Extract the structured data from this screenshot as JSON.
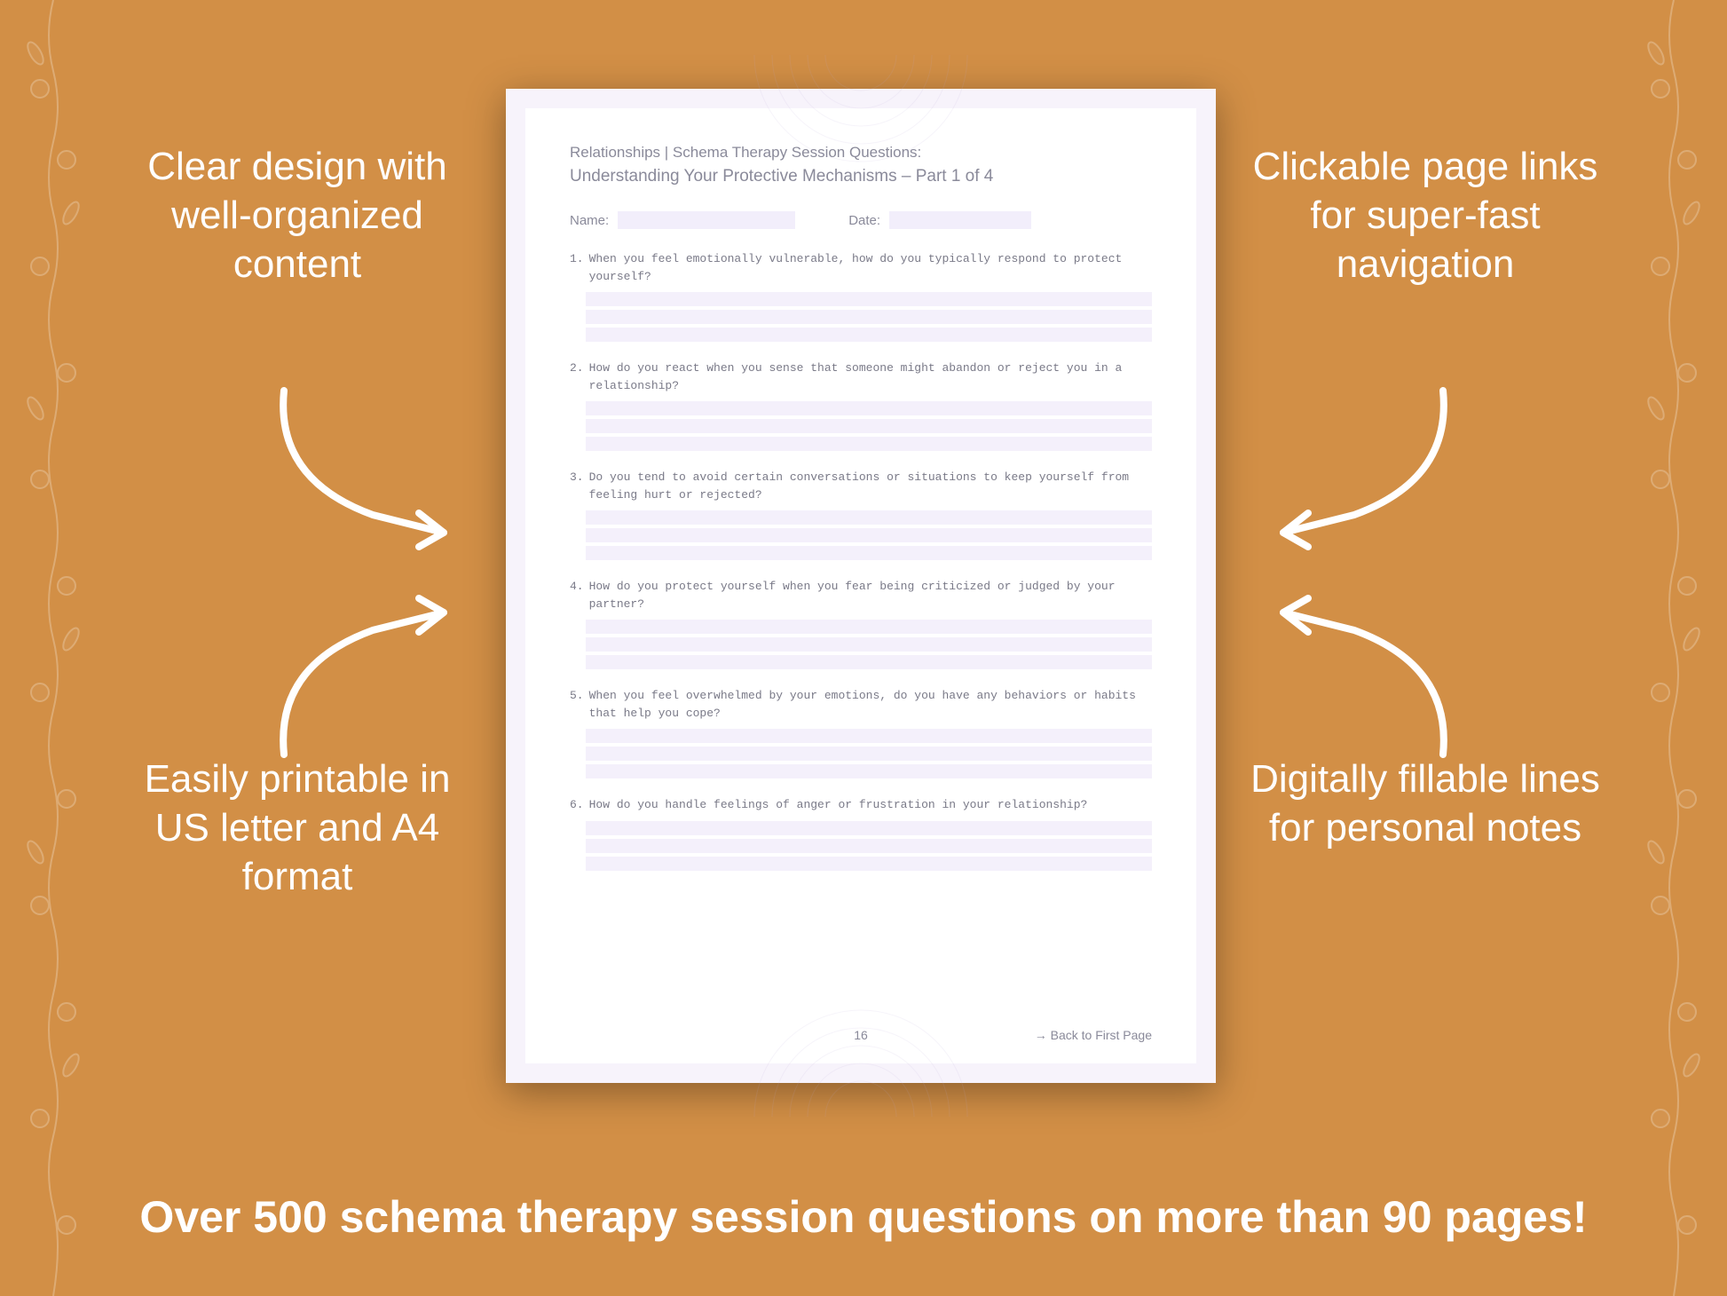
{
  "background_color": "#d28f46",
  "text_color": "#ffffff",
  "page_bg": "#f7f3fb",
  "page_inner_bg": "#ffffff",
  "line_fill": "#f4f0fb",
  "heading_color": "#8a8a9a",
  "mono_color": "#7a7a88",
  "callouts": {
    "top_left": "Clear design with well-organized content",
    "top_right": "Clickable page links for super-fast navigation",
    "bottom_left": "Easily printable in US letter and A4 format",
    "bottom_right": "Digitally fillable lines for personal notes"
  },
  "worksheet": {
    "header": "Relationships | Schema Therapy Session Questions:",
    "subtitle": "Understanding Your Protective Mechanisms  – Part 1 of 4",
    "name_label": "Name:",
    "date_label": "Date:",
    "name_blank_width": 200,
    "date_blank_width": 160,
    "questions": [
      {
        "num": "1.",
        "text": "When you feel emotionally vulnerable, how do you typically respond to protect yourself?",
        "lines": 3
      },
      {
        "num": "2.",
        "text": "How do you react when you sense that someone might abandon or reject you in a relationship?",
        "lines": 3
      },
      {
        "num": "3.",
        "text": "Do you tend to avoid certain conversations or situations to keep yourself from feeling hurt or rejected?",
        "lines": 3
      },
      {
        "num": "4.",
        "text": "How do you protect yourself when you fear being criticized or judged by your partner?",
        "lines": 3
      },
      {
        "num": "5.",
        "text": "When you feel overwhelmed by your emotions, do you have any behaviors or habits that help you cope?",
        "lines": 3
      },
      {
        "num": "6.",
        "text": "How do you handle feelings of anger or frustration in your relationship?",
        "lines": 3
      }
    ],
    "page_number": "16",
    "back_link": "→ Back to First Page"
  },
  "bottom_caption": "Over 500 schema therapy session questions on more than 90 pages!"
}
